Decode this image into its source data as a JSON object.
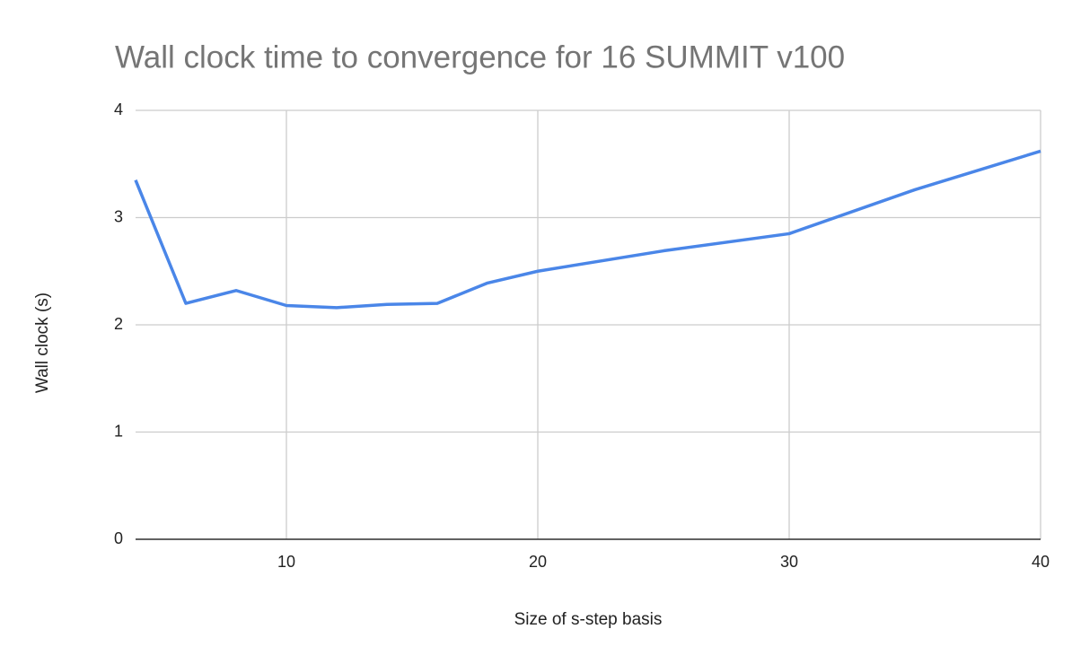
{
  "chart_data": {
    "type": "line",
    "title": "Wall clock time to convergence for 16 SUMMIT v100",
    "x_label": "Size of s-step basis",
    "y_label": "Wall clock (s)",
    "x": [
      4,
      6,
      8,
      10,
      12,
      14,
      16,
      18,
      20,
      25,
      30,
      35,
      40
    ],
    "series": [
      {
        "name": "Wall clock (s)",
        "color": "#4a86e8",
        "values": [
          3.35,
          2.2,
          2.32,
          2.18,
          2.16,
          2.19,
          2.2,
          2.39,
          2.5,
          2.69,
          2.85,
          3.26,
          3.62
        ]
      }
    ],
    "xlim": [
      4,
      40
    ],
    "xticks": [
      10,
      20,
      30,
      40
    ],
    "ylim": [
      0,
      4
    ],
    "yticks": [
      0,
      1,
      2,
      3,
      4
    ],
    "grid": true
  }
}
